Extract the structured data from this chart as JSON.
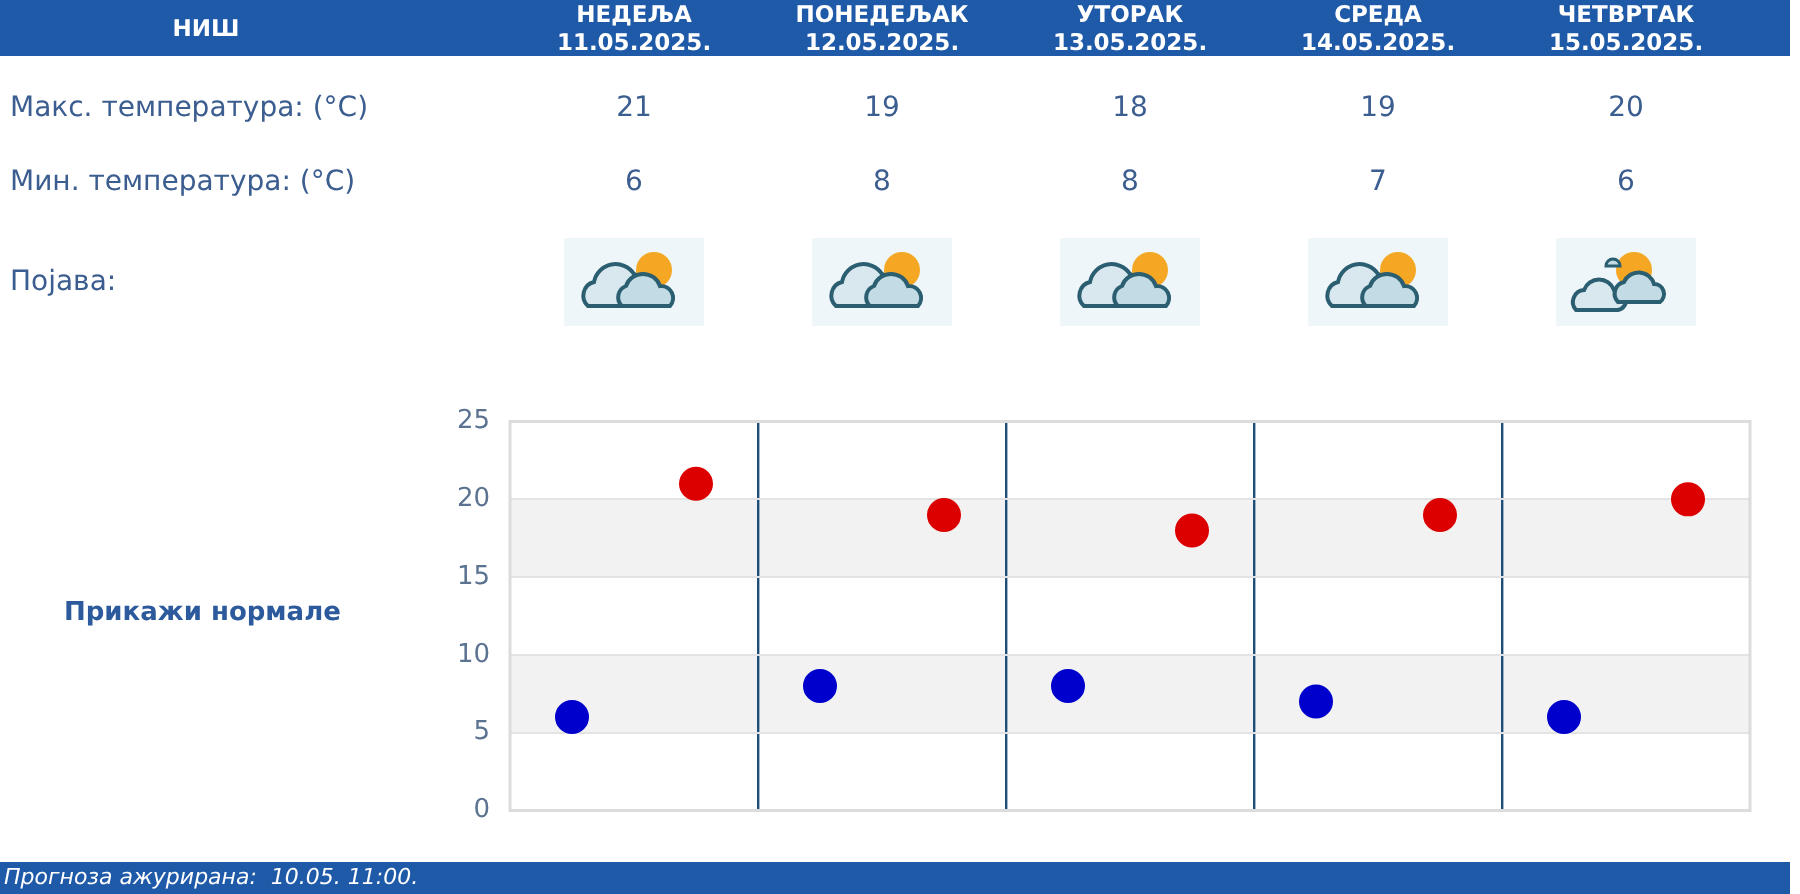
{
  "chart_data": {
    "type": "scatter",
    "title": "НИШ",
    "categories": [
      null,
      null,
      null,
      null,
      null
    ],
    "series": [
      {
        "color": "#dd0000",
        "values": [
          21,
          19,
          18,
          19,
          20
        ]
      },
      {
        "color": "#0000cc",
        "values": [
          6,
          8,
          8,
          7,
          6
        ]
      }
    ],
    "ylim": [
      0,
      25
    ],
    "yticks": [
      0,
      5,
      10,
      15,
      20,
      25
    ],
    "grid": true,
    "bands": [
      {
        "axis": "y",
        "from": 5,
        "to": 10,
        "color": "#f2f2f2"
      },
      {
        "axis": "y",
        "from": 15,
        "to": 20,
        "color": "#f2f2f2"
      }
    ],
    "legend": false,
    "marker": "circle",
    "data_labels": true,
    "annotations": [
      "НЕДЕЉА 11.05.2025.",
      "ПОНЕДЕЉАК 12.05.2025.",
      "УТОРАК 13.05.2025.",
      "СРЕДА 14.05.2025.",
      "ЧЕТВРТАК 15.05.2025.",
      "Макс. температура: (°C)",
      "Мин. температура: (°C)",
      "Појава:",
      "Прикажи нормале",
      "Прогноза ажурирана:  10.05. 11:00."
    ]
  }
}
